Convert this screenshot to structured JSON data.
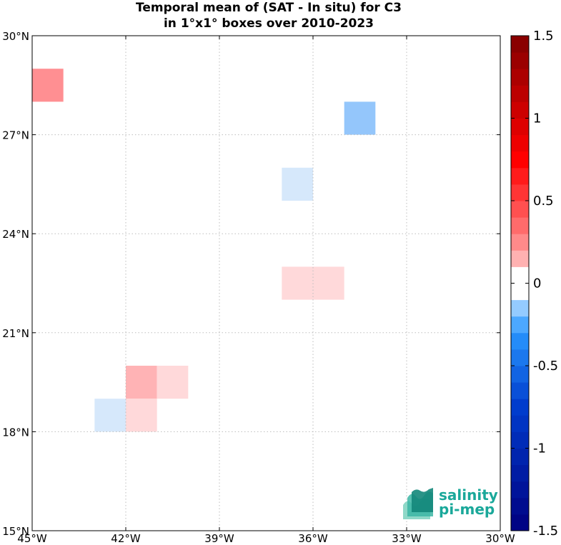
{
  "chart_data": {
    "type": "heatmap",
    "title_line1": "Temporal mean of (SAT - In situ) for C3",
    "title_line2": "in 1°x1° boxes over 2010-2023",
    "x_ticks": [
      "45°W",
      "42°W",
      "39°W",
      "36°W",
      "33°W",
      "30°W"
    ],
    "x_tick_values": [
      -45,
      -42,
      -39,
      -36,
      -33,
      -30
    ],
    "y_ticks": [
      "15°N",
      "18°N",
      "21°N",
      "24°N",
      "27°N",
      "30°N"
    ],
    "y_tick_values": [
      15,
      18,
      21,
      24,
      27,
      30
    ],
    "xlim": [
      -45,
      -30
    ],
    "ylim": [
      15,
      30
    ],
    "grid": true,
    "colorbar": {
      "min": -1.5,
      "max": 1.5,
      "step": 0.1,
      "tick_labels": [
        "1.5",
        "1",
        "0.5",
        "0",
        "-0.5",
        "-1",
        "-1.5"
      ],
      "tick_values": [
        1.5,
        1,
        0.5,
        0,
        -0.5,
        -1,
        -1.5
      ],
      "colormap": "blue-white-red"
    },
    "cells": [
      {
        "lon": -45,
        "lat": 28,
        "value": 0.35
      },
      {
        "lon": -35,
        "lat": 27,
        "value": -0.45
      },
      {
        "lon": -37,
        "lat": 25,
        "value": -0.15
      },
      {
        "lon": -37,
        "lat": 22,
        "value": 0.15
      },
      {
        "lon": -36,
        "lat": 22,
        "value": 0.15
      },
      {
        "lon": -42,
        "lat": 19,
        "value": 0.25
      },
      {
        "lon": -41,
        "lat": 19,
        "value": 0.15
      },
      {
        "lon": -43,
        "lat": 18,
        "value": -0.15
      },
      {
        "lon": -42,
        "lat": 18,
        "value": 0.15
      }
    ]
  },
  "logo": {
    "line1": "salinity",
    "line2": "pi-mep",
    "color": "#1aa89a"
  }
}
